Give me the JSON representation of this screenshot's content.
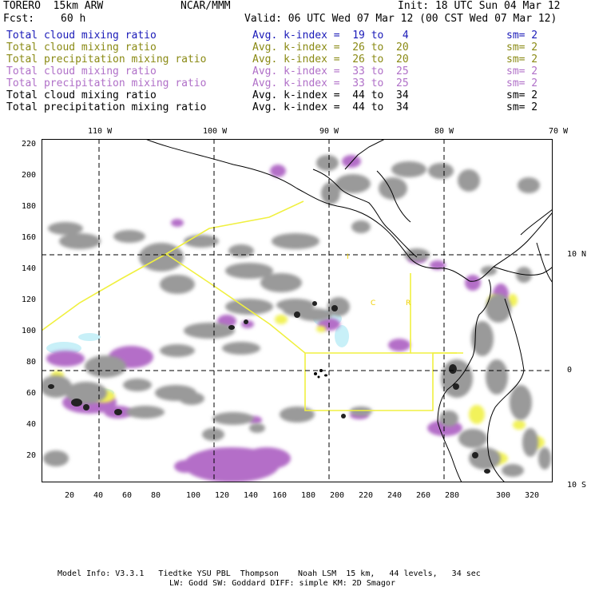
{
  "header": {
    "model": "TORERO  15km ARW",
    "center": "NCAR/MMM",
    "init": "Init: 18 UTC Sun 04 Mar 12",
    "fcst_label": "Fcst:",
    "fcst_value": "60 h",
    "valid": "Valid: 06 UTC Wed 07 Mar 12 (00 CST Wed 07 Mar 12)"
  },
  "legend": [
    {
      "field": "Total cloud mixing ratio",
      "kindex": "Avg. k-index =  19 to   4",
      "sm": "sm= 2",
      "color": "#1a1ab8"
    },
    {
      "field": "Total cloud mixing ratio",
      "kindex": "Avg. k-index =  26 to  20",
      "sm": "sm= 2",
      "color": "#8a8a14"
    },
    {
      "field": "Total precipitation mixing ratio",
      "kindex": "Avg. k-index =  26 to  20",
      "sm": "sm= 2",
      "color": "#8a8a14"
    },
    {
      "field": "Total cloud mixing ratio",
      "kindex": "Avg. k-index =  33 to  25",
      "sm": "sm= 2",
      "color": "#b070c8"
    },
    {
      "field": "Total precipitation mixing ratio",
      "kindex": "Avg. k-index =  33 to  25",
      "sm": "sm= 2",
      "color": "#b070c8"
    },
    {
      "field": "Total cloud mixing ratio",
      "kindex": "Avg. k-index =  44 to  34",
      "sm": "sm= 2",
      "color": "#000000"
    },
    {
      "field": "Total precipitation mixing ratio",
      "kindex": "Avg. k-index =  44 to  34",
      "sm": "sm= 2",
      "color": "#000000"
    }
  ],
  "map": {
    "lon_labels": [
      "110 W",
      "100 W",
      "90 W",
      "80 W",
      "70 W"
    ],
    "lat_labels": [
      "10 N",
      "0",
      "10 S"
    ],
    "x_ticks": [
      "20",
      "40",
      "60",
      "80",
      "100",
      "120",
      "140",
      "160",
      "180",
      "200",
      "220",
      "240",
      "260",
      "280",
      "300",
      "320"
    ],
    "y_ticks": [
      "220",
      "200",
      "180",
      "160",
      "140",
      "120",
      "100",
      "80",
      "60",
      "40",
      "20"
    ],
    "letters": [
      "I",
      "C",
      "R"
    ],
    "colors": {
      "gray_cloud": "#9a9a9a",
      "dark_core": "#222222",
      "purple": "#b46ec8",
      "yellow": "#f2f25a",
      "cyan": "#c8f0f8",
      "domain_line": "#f0f040"
    }
  },
  "footer": {
    "line1": "Model Info: V3.3.1   Tiedtke YSU PBL  Thompson    Noah LSM  15 km,   44 levels,   34 sec",
    "line2": "LW: Godd SW: Goddard DIFF: simple KM: 2D Smagor"
  }
}
